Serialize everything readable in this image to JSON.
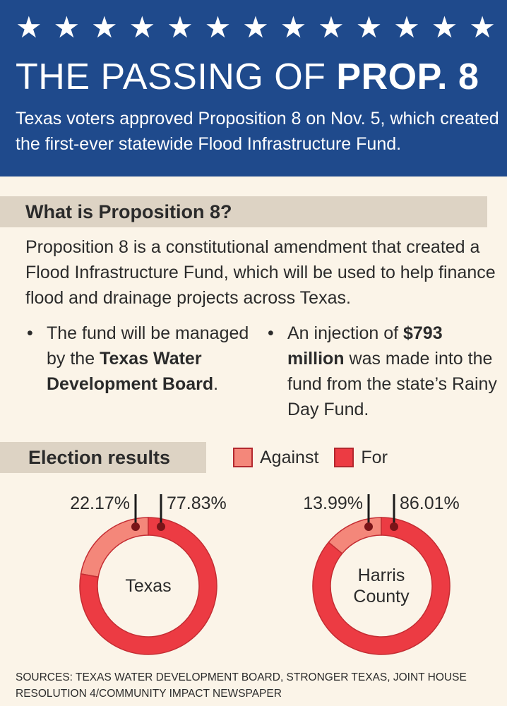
{
  "header": {
    "stars": [
      "★",
      "★",
      "★",
      "★",
      "★",
      "★",
      "★",
      "★",
      "★",
      "★",
      "★",
      "★",
      "★"
    ],
    "title_light": "THE PASSING OF",
    "title_bold": "PROP. 8",
    "subtitle": "Texas voters approved Proposition 8 on Nov. 5, which created the first-ever statewide Flood Infrastructure Fund."
  },
  "what_is": {
    "heading": "What is Proposition 8?",
    "body": "Proposition 8 is a constitutional amendment that created a Flood Infrastructure Fund, which will be used to help finance flood and drainage projects across Texas.",
    "bullet1": {
      "pre": "The fund will be managed by the ",
      "bold": "Texas Water Development Board",
      "post": "."
    },
    "bullet2": {
      "pre": "An injection of ",
      "bold": "$793 million",
      "post": " was made into the fund from the state’s Rainy Day Fund."
    }
  },
  "election": {
    "heading": "Election results",
    "legend": [
      {
        "label": "Against",
        "color": "#f4877a"
      },
      {
        "label": "For",
        "color": "#ec3b43"
      }
    ]
  },
  "colors": {
    "banner": "#1f4a8c",
    "against": "#f4877a",
    "for": "#ec3b43",
    "marker": "#7a1418",
    "background": "#fbf4e8"
  },
  "chart_data": [
    {
      "type": "pie",
      "center_label": "Texas",
      "categories": [
        "Against",
        "For"
      ],
      "values": [
        22.17,
        77.83
      ],
      "labels": [
        "22.17%",
        "77.83%"
      ]
    },
    {
      "type": "pie",
      "center_label": "Harris County",
      "categories": [
        "Against",
        "For"
      ],
      "values": [
        13.99,
        86.01
      ],
      "labels": [
        "13.99%",
        "86.01%"
      ]
    }
  ],
  "sources": "Sources: Texas Water Development Board, Stronger Texas, Joint House Resolution 4/Community Impact Newspaper"
}
